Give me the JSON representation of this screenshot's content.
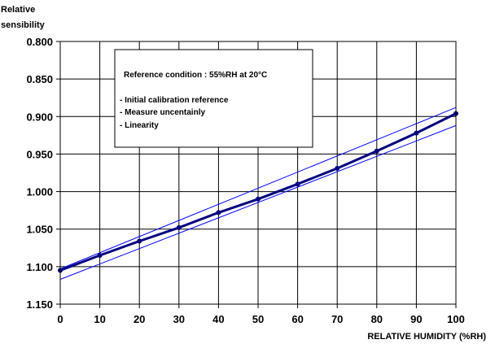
{
  "chart_data": {
    "type": "line",
    "ylabel_lines": [
      "Relative",
      "sensibility"
    ],
    "xlabel": "RELATIVE HUMIDITY (%RH)",
    "xlim": [
      0,
      100
    ],
    "ylim": [
      0.8,
      1.15
    ],
    "y_inverted": true,
    "grid": true,
    "x_ticks": [
      "0",
      "10",
      "20",
      "30",
      "40",
      "50",
      "60",
      "70",
      "80",
      "90",
      "100"
    ],
    "y_ticks": [
      "0.800",
      "0.850",
      "0.900",
      "0.950",
      "1.000",
      "1.050",
      "1.100",
      "1.150"
    ],
    "series": [
      {
        "x": [
          0,
          10,
          20,
          30,
          40,
          50,
          60,
          70,
          80,
          90,
          100
        ],
        "values": [
          1.105,
          1.085,
          1.066,
          1.048,
          1.028,
          1.01,
          0.99,
          0.969,
          0.946,
          0.922,
          0.896
        ],
        "color": "#000080",
        "markers": true
      },
      {
        "x": [
          0,
          100
        ],
        "values": [
          1.103,
          0.888
        ],
        "color": "#0000ff",
        "markers": false
      },
      {
        "x": [
          0,
          100
        ],
        "values": [
          1.117,
          0.912
        ],
        "color": "#0000ff",
        "markers": false
      }
    ],
    "annotation": {
      "title": "Reference condition : 55%RH at 20°C",
      "items": [
        "- Initial calibration reference",
        "- Measure uncentainly",
        "- Linearity"
      ]
    }
  }
}
